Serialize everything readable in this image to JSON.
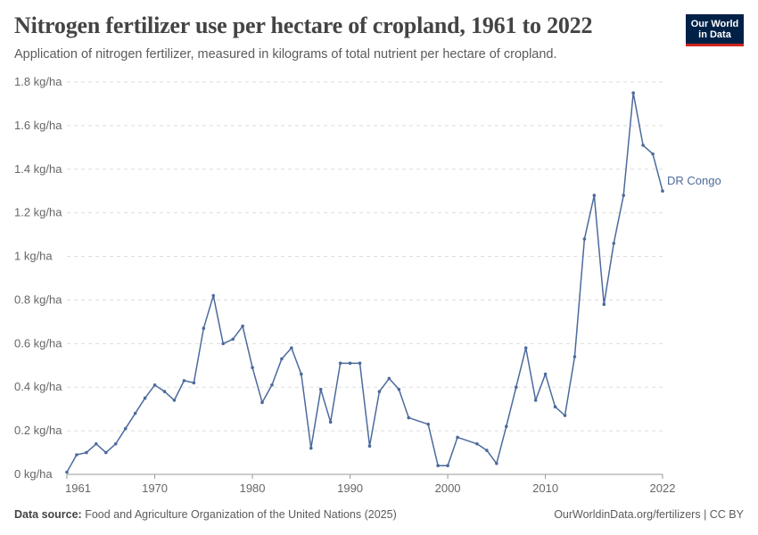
{
  "header": {
    "title": "Nitrogen fertilizer use per hectare of cropland, 1961 to 2022",
    "subtitle": "Application of nitrogen fertilizer, measured in kilograms of total nutrient per hectare of cropland.",
    "logo_line1": "Our World",
    "logo_line2": "in Data"
  },
  "footer": {
    "source_label": "Data source:",
    "source_text": "Food and Agriculture Organization of the United Nations (2025)",
    "credit": "OurWorldinData.org/fertilizers | CC BY"
  },
  "colors": {
    "series": "#4c6a9c",
    "grid": "#dddddd",
    "logo_bg": "#002147",
    "logo_accent": "#ce261e"
  },
  "chart_data": {
    "type": "line",
    "title": "Nitrogen fertilizer use per hectare of cropland, 1961 to 2022",
    "xlim": [
      1961,
      2022
    ],
    "ylim": [
      0,
      1.8
    ],
    "grid": "horizontal dashed",
    "x_ticks": [
      1961,
      1970,
      1980,
      1990,
      2000,
      2010,
      2022
    ],
    "y_ticks": [
      {
        "value": 0,
        "label": "0 kg/ha"
      },
      {
        "value": 0.2,
        "label": "0.2 kg/ha"
      },
      {
        "value": 0.4,
        "label": "0.4 kg/ha"
      },
      {
        "value": 0.6,
        "label": "0.6 kg/ha"
      },
      {
        "value": 0.8,
        "label": "0.8 kg/ha"
      },
      {
        "value": 1.0,
        "label": "1 kg/ha"
      },
      {
        "value": 1.2,
        "label": "1.2 kg/ha"
      },
      {
        "value": 1.4,
        "label": "1.4 kg/ha"
      },
      {
        "value": 1.6,
        "label": "1.6 kg/ha"
      },
      {
        "value": 1.8,
        "label": "1.8 kg/ha"
      }
    ],
    "series": [
      {
        "name": "DR Congo",
        "points": [
          [
            1961,
            0.01
          ],
          [
            1962,
            0.09
          ],
          [
            1963,
            0.1
          ],
          [
            1964,
            0.14
          ],
          [
            1965,
            0.1
          ],
          [
            1966,
            0.14
          ],
          [
            1967,
            0.21
          ],
          [
            1968,
            0.28
          ],
          [
            1969,
            0.35
          ],
          [
            1970,
            0.41
          ],
          [
            1971,
            0.38
          ],
          [
            1972,
            0.34
          ],
          [
            1973,
            0.43
          ],
          [
            1974,
            0.42
          ],
          [
            1975,
            0.67
          ],
          [
            1976,
            0.82
          ],
          [
            1977,
            0.6
          ],
          [
            1978,
            0.62
          ],
          [
            1979,
            0.68
          ],
          [
            1980,
            0.49
          ],
          [
            1981,
            0.33
          ],
          [
            1982,
            0.41
          ],
          [
            1983,
            0.53
          ],
          [
            1984,
            0.58
          ],
          [
            1985,
            0.46
          ],
          [
            1986,
            0.12
          ],
          [
            1987,
            0.39
          ],
          [
            1988,
            0.24
          ],
          [
            1989,
            0.51
          ],
          [
            1990,
            0.51
          ],
          [
            1991,
            0.51
          ],
          [
            1992,
            0.13
          ],
          [
            1993,
            0.38
          ],
          [
            1994,
            0.44
          ],
          [
            1995,
            0.39
          ],
          [
            1996,
            0.26
          ],
          [
            1998,
            0.23
          ],
          [
            1999,
            0.04
          ],
          [
            2000,
            0.04
          ],
          [
            2001,
            0.17
          ],
          [
            2003,
            0.14
          ],
          [
            2004,
            0.11
          ],
          [
            2005,
            0.05
          ],
          [
            2006,
            0.22
          ],
          [
            2007,
            0.4
          ],
          [
            2008,
            0.58
          ],
          [
            2009,
            0.34
          ],
          [
            2010,
            0.46
          ],
          [
            2011,
            0.31
          ],
          [
            2012,
            0.27
          ],
          [
            2013,
            0.54
          ],
          [
            2014,
            1.08
          ],
          [
            2015,
            1.28
          ],
          [
            2016,
            0.78
          ],
          [
            2017,
            1.06
          ],
          [
            2018,
            1.28
          ],
          [
            2019,
            1.75
          ],
          [
            2020,
            1.51
          ],
          [
            2021,
            1.47
          ],
          [
            2022,
            1.3
          ]
        ]
      }
    ]
  }
}
